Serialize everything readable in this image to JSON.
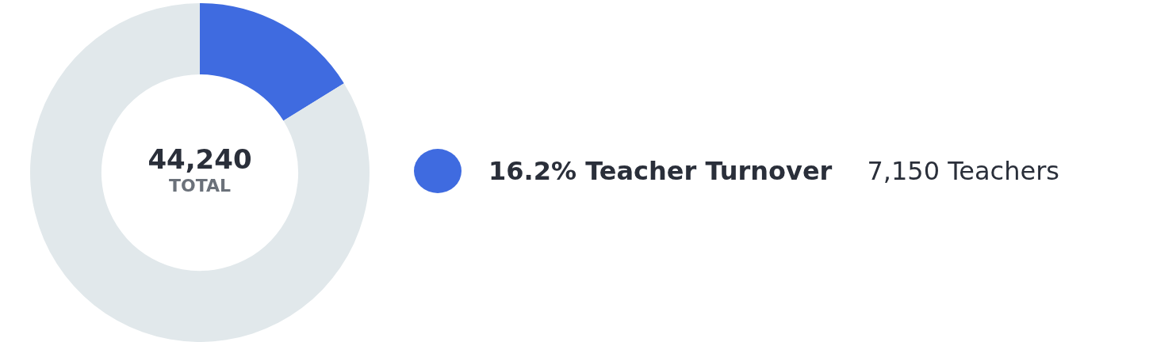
{
  "chart_data": {
    "type": "donut",
    "categories": [
      "16.2% Teacher Turnover",
      null
    ],
    "values": [
      7150,
      37090
    ],
    "colors": [
      "#3f6be0",
      "#e1e8eb"
    ],
    "value_labels": [
      "7,150 Teachers",
      null
    ],
    "annotations": [
      "44,240",
      "TOTAL"
    ],
    "legend": "right"
  }
}
